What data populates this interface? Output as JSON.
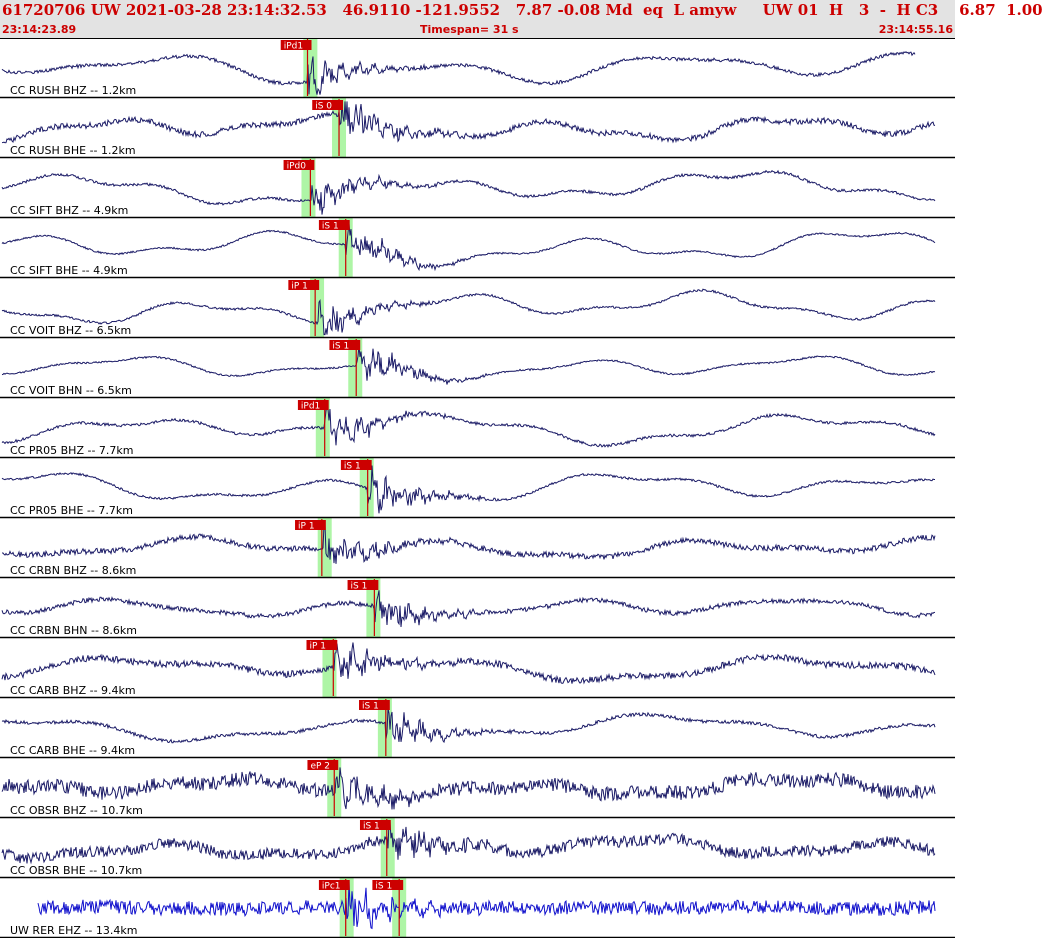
{
  "header": {
    "event_line": "61720706 UW 2021-03-28 23:14:32.53   46.9110 -121.9552   7.87 -0.08 Md  eq  L amyw     UW 01  H   3  -  H C3    6.87  1.00",
    "start_time": "23:14:23.89",
    "timespan": "Timespan=  31 s",
    "end_time": "23:14:55.16"
  },
  "colors": {
    "trace": "#1a1a66",
    "trace_ehz": "#1010cc",
    "pick": "#cc0000",
    "window": "#aef5a6",
    "header_bg": "#e3e3e3"
  },
  "panels": [
    {
      "label": "CC RUSH BHZ -- 1.2km",
      "pick": "iPd1",
      "pick_frac": 0.322,
      "win_frac": 0.325,
      "env": 0.06,
      "amp": 0.55,
      "seed": 1
    },
    {
      "label": "CC RUSH BHE -- 1.2km",
      "pick": "iS 0",
      "pick_frac": 0.355,
      "win_frac": 0.355,
      "env": 0.1,
      "amp": 0.45,
      "seed": 2
    },
    {
      "label": "CC SIFT BHZ -- 4.9km",
      "pick": "iPd0",
      "pick_frac": 0.325,
      "win_frac": 0.323,
      "env": 0.05,
      "amp": 0.55,
      "seed": 3
    },
    {
      "label": "CC SIFT BHE -- 4.9km",
      "pick": "iS 1",
      "pick_frac": 0.362,
      "win_frac": 0.362,
      "env": 0.03,
      "amp": 0.6,
      "seed": 4
    },
    {
      "label": "CC VOIT BHZ -- 6.5km",
      "pick": "iP 1",
      "pick_frac": 0.33,
      "win_frac": 0.332,
      "env": 0.04,
      "amp": 0.55,
      "seed": 5
    },
    {
      "label": "CC VOIT BHN -- 6.5km",
      "pick": "iS 1",
      "pick_frac": 0.373,
      "win_frac": 0.372,
      "env": 0.03,
      "amp": 0.4,
      "seed": 6
    },
    {
      "label": "CC PR05 BHZ -- 7.7km",
      "pick": "iPd1",
      "pick_frac": 0.34,
      "win_frac": 0.338,
      "env": 0.05,
      "amp": 0.55,
      "seed": 7
    },
    {
      "label": "CC PR05 BHE -- 7.7km",
      "pick": "iS 1",
      "pick_frac": 0.385,
      "win_frac": 0.384,
      "env": 0.04,
      "amp": 0.55,
      "seed": 8
    },
    {
      "label": "CC CRBN BHZ -- 8.6km",
      "pick": "iP 1",
      "pick_frac": 0.337,
      "win_frac": 0.34,
      "env": 0.1,
      "amp": 0.35,
      "seed": 9
    },
    {
      "label": "CC CRBN BHN -- 8.6km",
      "pick": "iS 1",
      "pick_frac": 0.392,
      "win_frac": 0.391,
      "env": 0.08,
      "amp": 0.35,
      "seed": 10
    },
    {
      "label": "CC CARB BHZ -- 9.4km",
      "pick": "iP 1",
      "pick_frac": 0.349,
      "win_frac": 0.345,
      "env": 0.12,
      "amp": 0.45,
      "seed": 11
    },
    {
      "label": "CC CARB BHE -- 9.4km",
      "pick": "iS 1",
      "pick_frac": 0.404,
      "win_frac": 0.403,
      "env": 0.06,
      "amp": 0.45,
      "seed": 12
    },
    {
      "label": "CC OBSR BHZ -- 10.7km",
      "pick": "eP 2",
      "pick_frac": 0.35,
      "win_frac": 0.35,
      "env": 0.25,
      "amp": 0.35,
      "seed": 13
    },
    {
      "label": "CC OBSR BHE -- 10.7km",
      "pick": "iS 1",
      "pick_frac": 0.405,
      "win_frac": 0.406,
      "env": 0.2,
      "amp": 0.35,
      "seed": 14
    },
    {
      "label": "UW RER EHZ -- 13.4km",
      "pick": "iPc1",
      "pick_frac": 0.362,
      "win_frac": 0.363,
      "env": 0.25,
      "amp": 0.05,
      "seed": 15,
      "pick2": "iS 1",
      "pick2_frac": 0.418,
      "win2_frac": 0.418
    }
  ]
}
